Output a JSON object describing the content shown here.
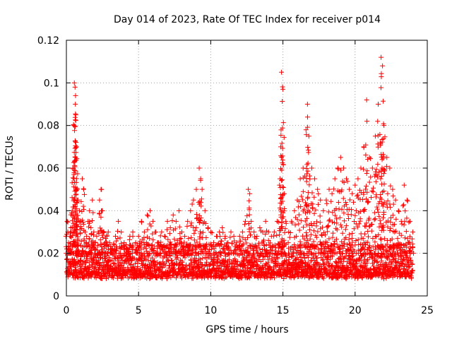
{
  "chart_data": {
    "type": "scatter",
    "title": "Day 014 of 2023, Rate Of TEC Index for receiver p014",
    "xlabel": "GPS time / hours",
    "ylabel": "ROTI / TECUs",
    "xlim": [
      0,
      25
    ],
    "ylim": [
      0,
      0.12
    ],
    "xticks": [
      0,
      5,
      10,
      15,
      20,
      25
    ],
    "xtick_labels": [
      "0",
      "5",
      "10",
      "15",
      "20",
      "25"
    ],
    "yticks": [
      0,
      0.02,
      0.04,
      0.06,
      0.08,
      0.1,
      0.12
    ],
    "ytick_labels": [
      "0",
      "0.02",
      "0.04",
      "0.06",
      "0.08",
      "0.1",
      "0.12"
    ],
    "grid": true,
    "marker": "plus",
    "color": "#ff0000",
    "series": [
      {
        "name": "ROTI",
        "x": [
          0.05,
          0.1,
          0.15,
          0.2,
          0.25,
          0.3,
          0.4,
          0.45,
          0.5,
          0.55,
          0.6,
          0.62,
          0.65,
          0.7,
          0.75,
          0.8,
          0.9,
          1.0,
          1.1,
          1.2,
          1.3,
          1.4,
          1.5,
          1.6,
          1.7,
          1.8,
          1.9,
          2.0,
          2.1,
          2.2,
          2.3,
          2.4,
          2.5,
          2.6,
          2.7,
          2.8,
          2.9,
          3.0,
          3.2,
          3.4,
          3.6,
          3.8,
          4.0,
          4.2,
          4.4,
          4.6,
          4.8,
          5.0,
          5.2,
          5.4,
          5.6,
          5.8,
          6.0,
          6.2,
          6.4,
          6.6,
          6.8,
          7.0,
          7.2,
          7.4,
          7.6,
          7.8,
          8.0,
          8.2,
          8.4,
          8.6,
          8.8,
          9.0,
          9.2,
          9.3,
          9.4,
          9.6,
          9.8,
          10.0,
          10.2,
          10.4,
          10.6,
          10.8,
          11.0,
          11.2,
          11.4,
          11.6,
          11.8,
          12.0,
          12.2,
          12.4,
          12.6,
          12.7,
          12.8,
          13.0,
          13.2,
          13.4,
          13.6,
          13.8,
          14.0,
          14.2,
          14.4,
          14.6,
          14.8,
          14.85,
          14.9,
          15.0,
          15.1,
          15.2,
          15.4,
          15.6,
          15.8,
          16.0,
          16.2,
          16.4,
          16.6,
          16.7,
          16.8,
          17.0,
          17.2,
          17.4,
          17.6,
          17.8,
          18.0,
          18.2,
          18.4,
          18.6,
          18.8,
          19.0,
          19.2,
          19.4,
          19.6,
          19.8,
          20.0,
          20.2,
          20.4,
          20.6,
          20.8,
          21.0,
          21.2,
          21.4,
          21.6,
          21.8,
          21.9,
          22.0,
          22.2,
          22.4,
          22.6,
          22.8,
          23.0,
          23.2,
          23.4,
          23.6,
          23.8,
          24.0
        ],
        "y": [
          0.035,
          0.03,
          0.025,
          0.022,
          0.028,
          0.032,
          0.04,
          0.06,
          0.08,
          0.1,
          0.098,
          0.09,
          0.085,
          0.07,
          0.05,
          0.045,
          0.04,
          0.035,
          0.055,
          0.05,
          0.03,
          0.028,
          0.035,
          0.04,
          0.032,
          0.045,
          0.03,
          0.025,
          0.028,
          0.03,
          0.045,
          0.05,
          0.04,
          0.03,
          0.025,
          0.028,
          0.03,
          0.025,
          0.022,
          0.028,
          0.035,
          0.03,
          0.025,
          0.022,
          0.028,
          0.03,
          0.025,
          0.028,
          0.035,
          0.03,
          0.038,
          0.04,
          0.035,
          0.03,
          0.025,
          0.03,
          0.028,
          0.035,
          0.032,
          0.038,
          0.035,
          0.04,
          0.03,
          0.028,
          0.035,
          0.04,
          0.045,
          0.05,
          0.06,
          0.055,
          0.05,
          0.04,
          0.032,
          0.03,
          0.025,
          0.028,
          0.03,
          0.032,
          0.028,
          0.025,
          0.03,
          0.028,
          0.025,
          0.028,
          0.03,
          0.035,
          0.05,
          0.048,
          0.035,
          0.03,
          0.028,
          0.032,
          0.03,
          0.035,
          0.03,
          0.028,
          0.03,
          0.035,
          0.055,
          0.07,
          0.105,
          0.097,
          0.048,
          0.035,
          0.03,
          0.035,
          0.04,
          0.045,
          0.055,
          0.06,
          0.078,
          0.09,
          0.075,
          0.06,
          0.055,
          0.05,
          0.045,
          0.04,
          0.045,
          0.05,
          0.048,
          0.055,
          0.06,
          0.065,
          0.06,
          0.055,
          0.05,
          0.048,
          0.052,
          0.055,
          0.06,
          0.07,
          0.092,
          0.065,
          0.06,
          0.075,
          0.09,
          0.112,
          0.108,
          0.08,
          0.065,
          0.06,
          0.05,
          0.045,
          0.04,
          0.035,
          0.052,
          0.045,
          0.035,
          0.03
        ]
      }
    ],
    "baseline_band": {
      "x_range": [
        0,
        24
      ],
      "y_range": [
        0.005,
        0.025
      ],
      "note": "dense background noise of ROTI values"
    }
  }
}
